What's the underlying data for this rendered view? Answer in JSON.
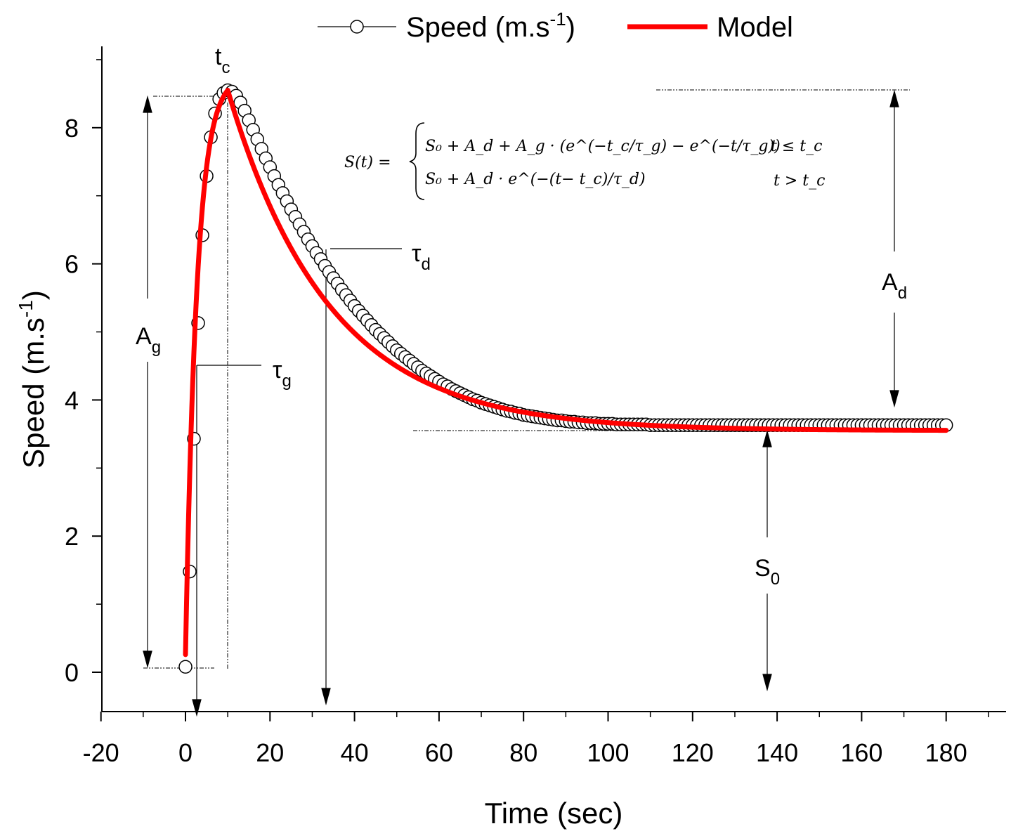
{
  "legend": {
    "data_label": "Speed (m.s",
    "data_label_sup": "-1",
    "data_label_end": ")",
    "model_label": "Model"
  },
  "axes": {
    "x_title": "Time (sec)",
    "y_title": "Speed (m.s",
    "y_title_sup": "-1",
    "y_title_end": ")"
  },
  "annotations": {
    "tc": "t",
    "tc_sub": "c",
    "tau_d": "τ",
    "tau_d_sub": "d",
    "tau_g": "τ",
    "tau_g_sub": "g",
    "A_g": "A",
    "A_g_sub": "g",
    "A_d": "A",
    "A_d_sub": "d",
    "S0": "S",
    "S0_sub": "0"
  },
  "equation": {
    "lhs": "S(t) =",
    "line1": "S₀ + A_d +  A_g · (e^(−t_c/τ_g) −  e^(−t/τ_g))",
    "cond1": "t ≤  t_c",
    "line2": "S₀ + A_d  · e^(−(t− t_c)/τ_d)",
    "cond2": "t  >  t_c"
  },
  "colors": {
    "model": "#ff0000",
    "marker_stroke": "#000000",
    "marker_fill": "#ffffff"
  },
  "chart_data": {
    "type": "line",
    "title": "",
    "xlabel": "Time (sec)",
    "ylabel": "Speed (m.s-1)",
    "xlim": [
      -20,
      195
    ],
    "ylim": [
      -0.6,
      9.1
    ],
    "xticks": [
      -20,
      0,
      20,
      40,
      60,
      80,
      100,
      120,
      140,
      160,
      180
    ],
    "yticks": [
      0,
      2,
      4,
      6,
      8
    ],
    "legend_position": "top",
    "model": {
      "S0": 3.55,
      "Ad": 5.0,
      "Ag": 8.5,
      "tc": 10,
      "tau_g": 2.7,
      "tau_d": 24.0,
      "t_start": 0,
      "t_end": 180
    },
    "series": [
      {
        "name": "Speed (m.s-1)",
        "style": "open-circle-markers",
        "x": [
          0,
          1,
          2,
          3,
          4,
          5,
          6,
          7,
          8,
          9,
          10,
          11,
          12,
          13,
          14,
          15,
          16,
          17,
          18,
          19,
          20,
          21,
          22,
          23,
          24,
          25,
          26,
          27,
          28,
          29,
          30,
          31,
          32,
          33,
          34,
          35,
          36,
          37,
          38,
          39,
          40,
          41,
          42,
          43,
          44,
          45,
          46,
          47,
          48,
          49,
          50,
          51,
          52,
          53,
          54,
          55,
          56,
          57,
          58,
          59,
          60,
          61,
          62,
          63,
          64,
          65,
          66,
          67,
          68,
          69,
          70,
          71,
          72,
          73,
          74,
          75,
          76,
          77,
          78,
          79,
          80,
          81,
          82,
          83,
          84,
          85,
          86,
          87,
          88,
          89,
          90,
          91,
          92,
          93,
          94,
          95,
          96,
          97,
          98,
          99,
          100,
          101,
          102,
          103,
          104,
          105,
          106,
          107,
          108,
          109,
          110,
          111,
          112,
          113,
          114,
          115,
          116,
          117,
          118,
          119,
          120,
          121,
          122,
          123,
          124,
          125,
          126,
          127,
          128,
          129,
          130,
          131,
          132,
          133,
          134,
          135,
          136,
          137,
          138,
          139,
          140,
          141,
          142,
          143,
          144,
          145,
          146,
          147,
          148,
          149,
          150,
          151,
          152,
          153,
          154,
          155,
          156,
          157,
          158,
          159,
          160,
          161,
          162,
          163,
          164,
          165,
          166,
          167,
          168,
          169,
          170,
          171,
          172,
          173,
          174,
          175,
          176,
          177,
          178,
          179,
          180
        ],
        "y": [
          0.08,
          1.48,
          3.43,
          5.13,
          6.42,
          7.29,
          7.86,
          8.21,
          8.42,
          8.51,
          8.55,
          8.53,
          8.47,
          8.37,
          8.25,
          8.11,
          7.97,
          7.83,
          7.69,
          7.55,
          7.42,
          7.29,
          7.16,
          7.04,
          6.92,
          6.8,
          6.69,
          6.58,
          6.47,
          6.36,
          6.26,
          6.16,
          6.07,
          5.97,
          5.88,
          5.79,
          5.71,
          5.62,
          5.54,
          5.46,
          5.38,
          5.31,
          5.24,
          5.17,
          5.1,
          5.03,
          4.97,
          4.91,
          4.85,
          4.79,
          4.73,
          4.68,
          4.63,
          4.58,
          4.53,
          4.48,
          4.43,
          4.39,
          4.35,
          4.31,
          4.27,
          4.23,
          4.2,
          4.16,
          4.13,
          4.1,
          4.07,
          4.04,
          4.01,
          3.99,
          3.96,
          3.94,
          3.92,
          3.9,
          3.88,
          3.86,
          3.84,
          3.83,
          3.81,
          3.8,
          3.78,
          3.77,
          3.76,
          3.75,
          3.74,
          3.73,
          3.72,
          3.71,
          3.7,
          3.7,
          3.69,
          3.68,
          3.68,
          3.67,
          3.67,
          3.66,
          3.66,
          3.66,
          3.65,
          3.65,
          3.65,
          3.65,
          3.64,
          3.64,
          3.64,
          3.64,
          3.64,
          3.64,
          3.64,
          3.64,
          3.63,
          3.63,
          3.63,
          3.63,
          3.63,
          3.63,
          3.63,
          3.63,
          3.63,
          3.63,
          3.63,
          3.63,
          3.63,
          3.63,
          3.63,
          3.63,
          3.63,
          3.63,
          3.63,
          3.63,
          3.63,
          3.63,
          3.63,
          3.63,
          3.63,
          3.63,
          3.63,
          3.63,
          3.63,
          3.63,
          3.63,
          3.63,
          3.63,
          3.63,
          3.63,
          3.63,
          3.63,
          3.63,
          3.63,
          3.63,
          3.63,
          3.63,
          3.63,
          3.63,
          3.63,
          3.63,
          3.63,
          3.63,
          3.63,
          3.63,
          3.63,
          3.63,
          3.63,
          3.63,
          3.63,
          3.63,
          3.63,
          3.63,
          3.63,
          3.63,
          3.63,
          3.63,
          3.63,
          3.63,
          3.63,
          3.63,
          3.63,
          3.63,
          3.63,
          3.63,
          3.63
        ]
      },
      {
        "name": "Model",
        "style": "red-line",
        "color": "#ff0000"
      }
    ]
  }
}
